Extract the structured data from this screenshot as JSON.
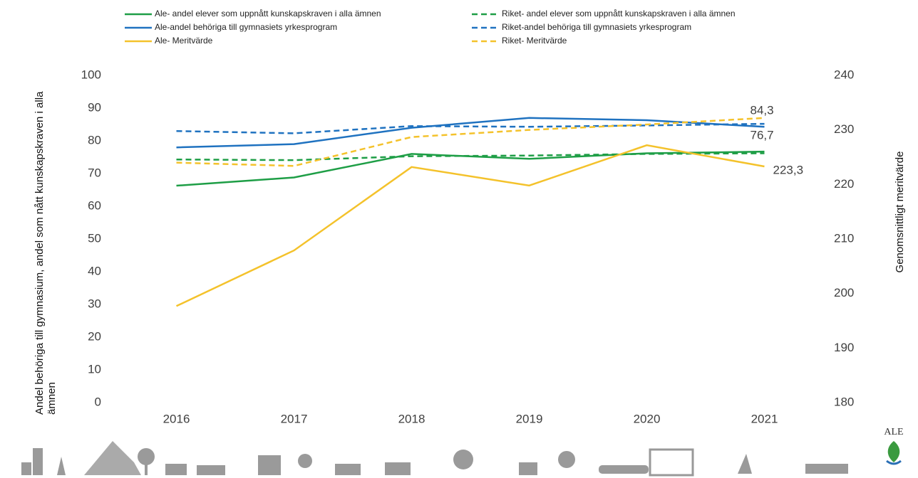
{
  "chart_data": {
    "type": "line",
    "categories": [
      "2016",
      "2017",
      "2018",
      "2019",
      "2020",
      "2021"
    ],
    "y_axis_label": "Andel behöriga till gymnasium, andel som nått kunskapskraven i alla ämnen",
    "y2_axis_label": "Genomsnittligt meritvärde",
    "ylim": [
      0,
      100
    ],
    "yticks": [
      0,
      10,
      20,
      30,
      40,
      50,
      60,
      70,
      80,
      90,
      100
    ],
    "y2lim": [
      180,
      240
    ],
    "y2ticks": [
      180,
      190,
      200,
      210,
      220,
      230,
      240
    ],
    "grid": false,
    "legend": "top",
    "series": [
      {
        "name": "Ale- andel elever som uppnått kunskapskraven i alla ämnen",
        "color": "#1e9e46",
        "style": "solid",
        "values": [
          66.3,
          68.8,
          76.0,
          74.5,
          76.2,
          76.7
        ],
        "value_labels": [
          null,
          null,
          null,
          null,
          null,
          "76,7"
        ]
      },
      {
        "name": "Riket- andel elever som uppnått kunskapskraven i alla ämnen",
        "color": "#1e9e46",
        "style": "dashed",
        "values": [
          74.3,
          74.1,
          75.3,
          75.5,
          76.0,
          76.2
        ]
      },
      {
        "name": "Ale-andel behöriga till gymnasiets yrkesprogram",
        "color": "#1f72c0",
        "style": "solid",
        "values": [
          78.0,
          79.0,
          84.0,
          87.0,
          86.3,
          84.3
        ],
        "value_labels": [
          null,
          null,
          null,
          null,
          null,
          "84,3"
        ]
      },
      {
        "name": "Riket-andel behöriga till gymnasiets yrkesprogram",
        "color": "#1f72c0",
        "style": "dashed",
        "values": [
          83.0,
          82.3,
          84.5,
          84.3,
          84.7,
          85.2
        ]
      },
      {
        "name": "Ale- Meritvärde",
        "color": "#f4c22b",
        "style": "solid",
        "axis": "y2",
        "values": [
          197.7,
          207.9,
          223.2,
          219.8,
          227.2,
          223.3
        ],
        "value_labels": [
          null,
          null,
          null,
          null,
          null,
          "223,3"
        ]
      },
      {
        "name": "Riket- Meritvärde",
        "color": "#f4c22b",
        "style": "dashed",
        "axis": "y2",
        "values": [
          224.0,
          223.4,
          228.7,
          230.0,
          231.0,
          232.2
        ]
      }
    ]
  },
  "logo": "ALE"
}
